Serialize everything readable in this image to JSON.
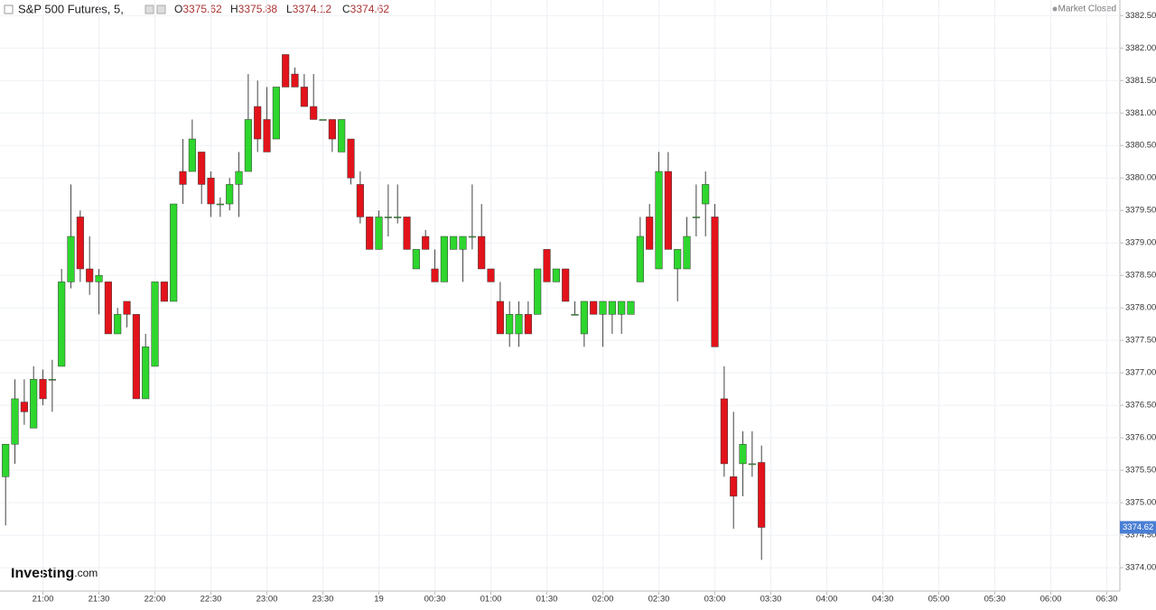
{
  "header": {
    "title": "S&P 500 Futures, 5,",
    "ohlc": [
      {
        "key": "O",
        "value": "3375.62"
      },
      {
        "key": "H",
        "value": "3375.88"
      },
      {
        "key": "L",
        "value": "3374.12"
      },
      {
        "key": "C",
        "value": "3374.62"
      }
    ],
    "status": "Market Closed"
  },
  "brand": {
    "name": "Investing",
    "suffix": ".com"
  },
  "chart_data": {
    "type": "candlestick",
    "up_color": "#2ed62e",
    "down_color": "#e3131b",
    "grid": true,
    "last_price": 3374.62,
    "open": [
      3375.4,
      3375.9,
      3376.55,
      3376.15,
      3376.9,
      3376.9,
      3377.1,
      3378.4,
      3379.4,
      3378.6,
      3378.4,
      3378.4,
      3377.6,
      3378.1,
      3377.9,
      3376.6,
      3377.1,
      3378.4,
      3378.1,
      3380.1,
      3380.1,
      3380.4,
      3380.0,
      3379.6,
      3379.6,
      3379.9,
      3380.1,
      3381.1,
      3380.9,
      3380.6,
      3381.9,
      3381.6,
      3381.4,
      3381.1,
      3380.9,
      3380.9,
      3380.4,
      3380.6,
      3379.9,
      3379.4,
      3378.9,
      3379.4,
      3379.4,
      3379.4,
      3378.6,
      3379.1,
      3378.6,
      3378.4,
      3378.9,
      3378.9,
      3379.1,
      3379.1,
      3378.6,
      3378.1,
      3377.6,
      3377.6,
      3377.9,
      3377.9,
      3378.9,
      3378.4,
      3378.6,
      3377.9,
      3377.6,
      3378.1,
      3377.9,
      3377.9,
      3377.9,
      3377.9,
      3378.4,
      3379.4,
      3378.6,
      3380.1,
      3378.6,
      3378.6,
      3379.4,
      3379.6,
      3379.4,
      3376.6,
      3375.4,
      3375.6,
      3375.6,
      3375.62
    ],
    "high": [
      3375.9,
      3376.9,
      3376.9,
      3377.1,
      3377.05,
      3377.2,
      3378.6,
      3379.9,
      3379.5,
      3379.1,
      3378.6,
      3378.4,
      3378.0,
      3378.1,
      3377.9,
      3377.6,
      3378.4,
      3378.4,
      3379.6,
      3380.6,
      3380.9,
      3380.4,
      3380.1,
      3379.7,
      3380.0,
      3380.4,
      3381.6,
      3381.5,
      3381.4,
      3381.4,
      3381.9,
      3381.7,
      3381.6,
      3381.6,
      3380.9,
      3380.9,
      3380.9,
      3380.6,
      3380.1,
      3379.4,
      3379.5,
      3379.9,
      3379.9,
      3379.4,
      3378.9,
      3379.2,
      3378.9,
      3379.1,
      3379.1,
      3379.1,
      3379.9,
      3379.6,
      3378.6,
      3378.4,
      3378.1,
      3378.1,
      3378.1,
      3378.6,
      3378.9,
      3378.6,
      3378.6,
      3378.1,
      3378.1,
      3378.1,
      3378.1,
      3378.1,
      3378.1,
      3378.1,
      3379.4,
      3379.6,
      3380.4,
      3380.4,
      3378.9,
      3379.4,
      3379.9,
      3380.1,
      3379.6,
      3377.1,
      3376.4,
      3376.1,
      3376.1,
      3375.88
    ],
    "low": [
      3374.65,
      3375.6,
      3376.2,
      3376.15,
      3376.5,
      3376.4,
      3377.1,
      3378.3,
      3378.4,
      3378.2,
      3377.9,
      3377.6,
      3377.6,
      3377.7,
      3376.6,
      3376.6,
      3377.1,
      3378.1,
      3378.1,
      3379.6,
      3380.1,
      3379.6,
      3379.4,
      3379.4,
      3379.5,
      3379.4,
      3380.1,
      3380.4,
      3380.4,
      3380.6,
      3381.4,
      3381.4,
      3381.1,
      3380.9,
      3380.9,
      3380.4,
      3380.4,
      3379.9,
      3379.3,
      3378.9,
      3378.9,
      3379.1,
      3379.3,
      3378.9,
      3378.6,
      3378.9,
      3378.4,
      3378.4,
      3378.9,
      3378.4,
      3378.9,
      3378.6,
      3378.4,
      3377.6,
      3377.4,
      3377.4,
      3377.6,
      3377.9,
      3378.4,
      3378.4,
      3378.1,
      3377.9,
      3377.4,
      3377.9,
      3377.4,
      3377.6,
      3377.6,
      3377.9,
      3378.4,
      3378.9,
      3378.6,
      3378.9,
      3378.1,
      3378.6,
      3379.1,
      3379.1,
      3377.4,
      3375.4,
      3374.6,
      3375.1,
      3375.4,
      3374.12
    ],
    "close": [
      3375.9,
      3376.6,
      3376.4,
      3376.9,
      3376.6,
      3376.9,
      3378.4,
      3379.1,
      3378.6,
      3378.4,
      3378.5,
      3377.6,
      3377.9,
      3377.9,
      3376.6,
      3377.4,
      3378.4,
      3378.1,
      3379.6,
      3379.9,
      3380.6,
      3379.9,
      3379.6,
      3379.6,
      3379.9,
      3380.1,
      3380.9,
      3380.6,
      3380.4,
      3381.4,
      3381.4,
      3381.4,
      3381.1,
      3380.9,
      3380.9,
      3380.6,
      3380.9,
      3380.0,
      3379.4,
      3378.9,
      3379.4,
      3379.4,
      3379.4,
      3378.9,
      3378.9,
      3378.9,
      3378.4,
      3379.1,
      3379.1,
      3379.1,
      3379.1,
      3378.6,
      3378.4,
      3377.6,
      3377.9,
      3377.9,
      3377.6,
      3378.6,
      3378.4,
      3378.6,
      3378.1,
      3377.9,
      3378.1,
      3377.9,
      3378.1,
      3378.1,
      3378.1,
      3378.1,
      3379.1,
      3378.9,
      3380.1,
      3378.9,
      3378.9,
      3379.1,
      3379.4,
      3379.9,
      3377.4,
      3375.6,
      3375.1,
      3375.9,
      3375.6,
      3374.62
    ],
    "xlim": [
      -0.6,
      119.4
    ],
    "xticks": [
      {
        "value": 4,
        "label": "21:00"
      },
      {
        "value": 10,
        "label": "21:30"
      },
      {
        "value": 16,
        "label": "22:00"
      },
      {
        "value": 22,
        "label": "22:30"
      },
      {
        "value": 28,
        "label": "23:00"
      },
      {
        "value": 34,
        "label": "23:30"
      },
      {
        "value": 40,
        "label": "19"
      },
      {
        "value": 46,
        "label": "00:30"
      },
      {
        "value": 52,
        "label": "01:00"
      },
      {
        "value": 58,
        "label": "01:30"
      },
      {
        "value": 64,
        "label": "02:00"
      },
      {
        "value": 70,
        "label": "02:30"
      },
      {
        "value": 76,
        "label": "03:00"
      },
      {
        "value": 82,
        "label": "03:30"
      },
      {
        "value": 88,
        "label": "04:00"
      },
      {
        "value": 94,
        "label": "04:30"
      },
      {
        "value": 100,
        "label": "05:00"
      },
      {
        "value": 106,
        "label": "05:30"
      },
      {
        "value": 112,
        "label": "06:00"
      },
      {
        "value": 118,
        "label": "06:30"
      }
    ],
    "ylim": [
      3373.64,
      3382.74
    ],
    "yticks": [
      {
        "value": 3374,
        "label": "3374.00"
      },
      {
        "value": 3374.5,
        "label": "3374.50"
      },
      {
        "value": 3375,
        "label": "3375.00"
      },
      {
        "value": 3375.5,
        "label": "3375.50"
      },
      {
        "value": 3376,
        "label": "3376.00"
      },
      {
        "value": 3376.5,
        "label": "3376.50"
      },
      {
        "value": 3377,
        "label": "3377.00"
      },
      {
        "value": 3377.5,
        "label": "3377.50"
      },
      {
        "value": 3378,
        "label": "3378.00"
      },
      {
        "value": 3378.5,
        "label": "3378.50"
      },
      {
        "value": 3379,
        "label": "3379.00"
      },
      {
        "value": 3379.5,
        "label": "3379.50"
      },
      {
        "value": 3380,
        "label": "3380.00"
      },
      {
        "value": 3380.5,
        "label": "3380.50"
      },
      {
        "value": 3381,
        "label": "3381.00"
      },
      {
        "value": 3381.5,
        "label": "3381.50"
      },
      {
        "value": 3382,
        "label": "3382.00"
      },
      {
        "value": 3382.5,
        "label": "3382.50"
      }
    ]
  }
}
